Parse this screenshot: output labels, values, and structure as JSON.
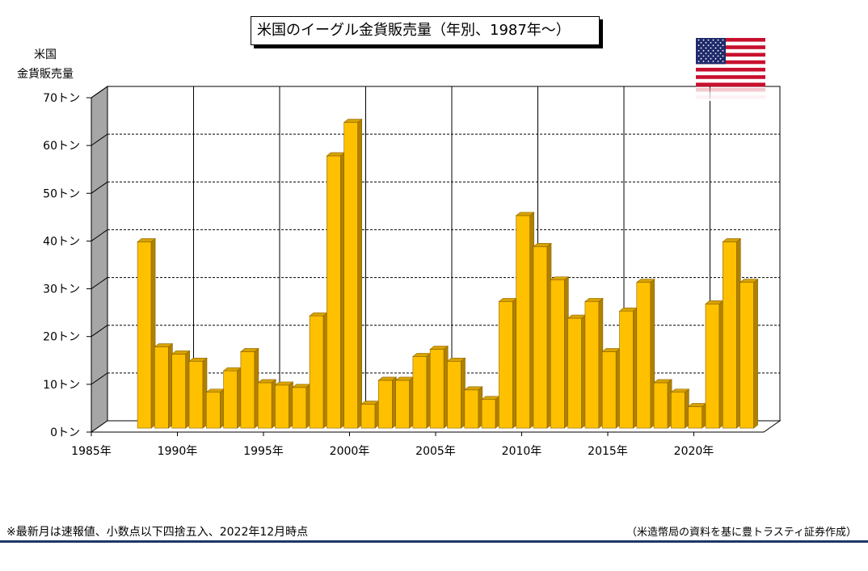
{
  "title": "米国のイーグル金貨販売量（年別、1987年～）",
  "ylabel_line1": "米国",
  "ylabel_line2": "金貨販売量",
  "footnote": "※最新月は速報値、小数点以下四捨五入、2022年12月時点",
  "source": "（米造幣局の資料を基に豊トラスティ証券作成）",
  "flag_icon": "us-flag-icon",
  "colors": {
    "bar_front": "#ffc000",
    "bar_side": "#b08000",
    "bar_top": "#d8a200",
    "wall_side": "#a6a6a6",
    "rule": "#1f3864"
  },
  "chart_data": {
    "type": "bar",
    "ylim": [
      0,
      70
    ],
    "yticks": [
      "0トン",
      "10トン",
      "20トン",
      "30トン",
      "40トン",
      "50トン",
      "60トン",
      "70トン"
    ],
    "xticks": [
      "1985年",
      "1990年",
      "1995年",
      "2000年",
      "2005年",
      "2010年",
      "2015年",
      "2020年"
    ],
    "x_start": 1985,
    "grid": true,
    "series": [
      {
        "x": [
          1987,
          1988,
          1989,
          1990,
          1991,
          1992,
          1993,
          1994,
          1995,
          1996,
          1997,
          1998,
          1999,
          2000,
          2001,
          2002,
          2003,
          2004,
          2005,
          2006,
          2007,
          2008,
          2009,
          2010,
          2011,
          2012,
          2013,
          2014,
          2015,
          2016,
          2017,
          2018,
          2019,
          2020,
          2021,
          2022
        ],
        "values": [
          39,
          17,
          15.5,
          14,
          7.5,
          12,
          16,
          9.5,
          9,
          8.5,
          23.5,
          57,
          64,
          5,
          10,
          10,
          15,
          16.5,
          14,
          8,
          6,
          26.5,
          44.5,
          38,
          31,
          23,
          26.5,
          16,
          24.5,
          30.5,
          9.5,
          7.5,
          4.5,
          26,
          39,
          30.5
        ]
      }
    ]
  }
}
